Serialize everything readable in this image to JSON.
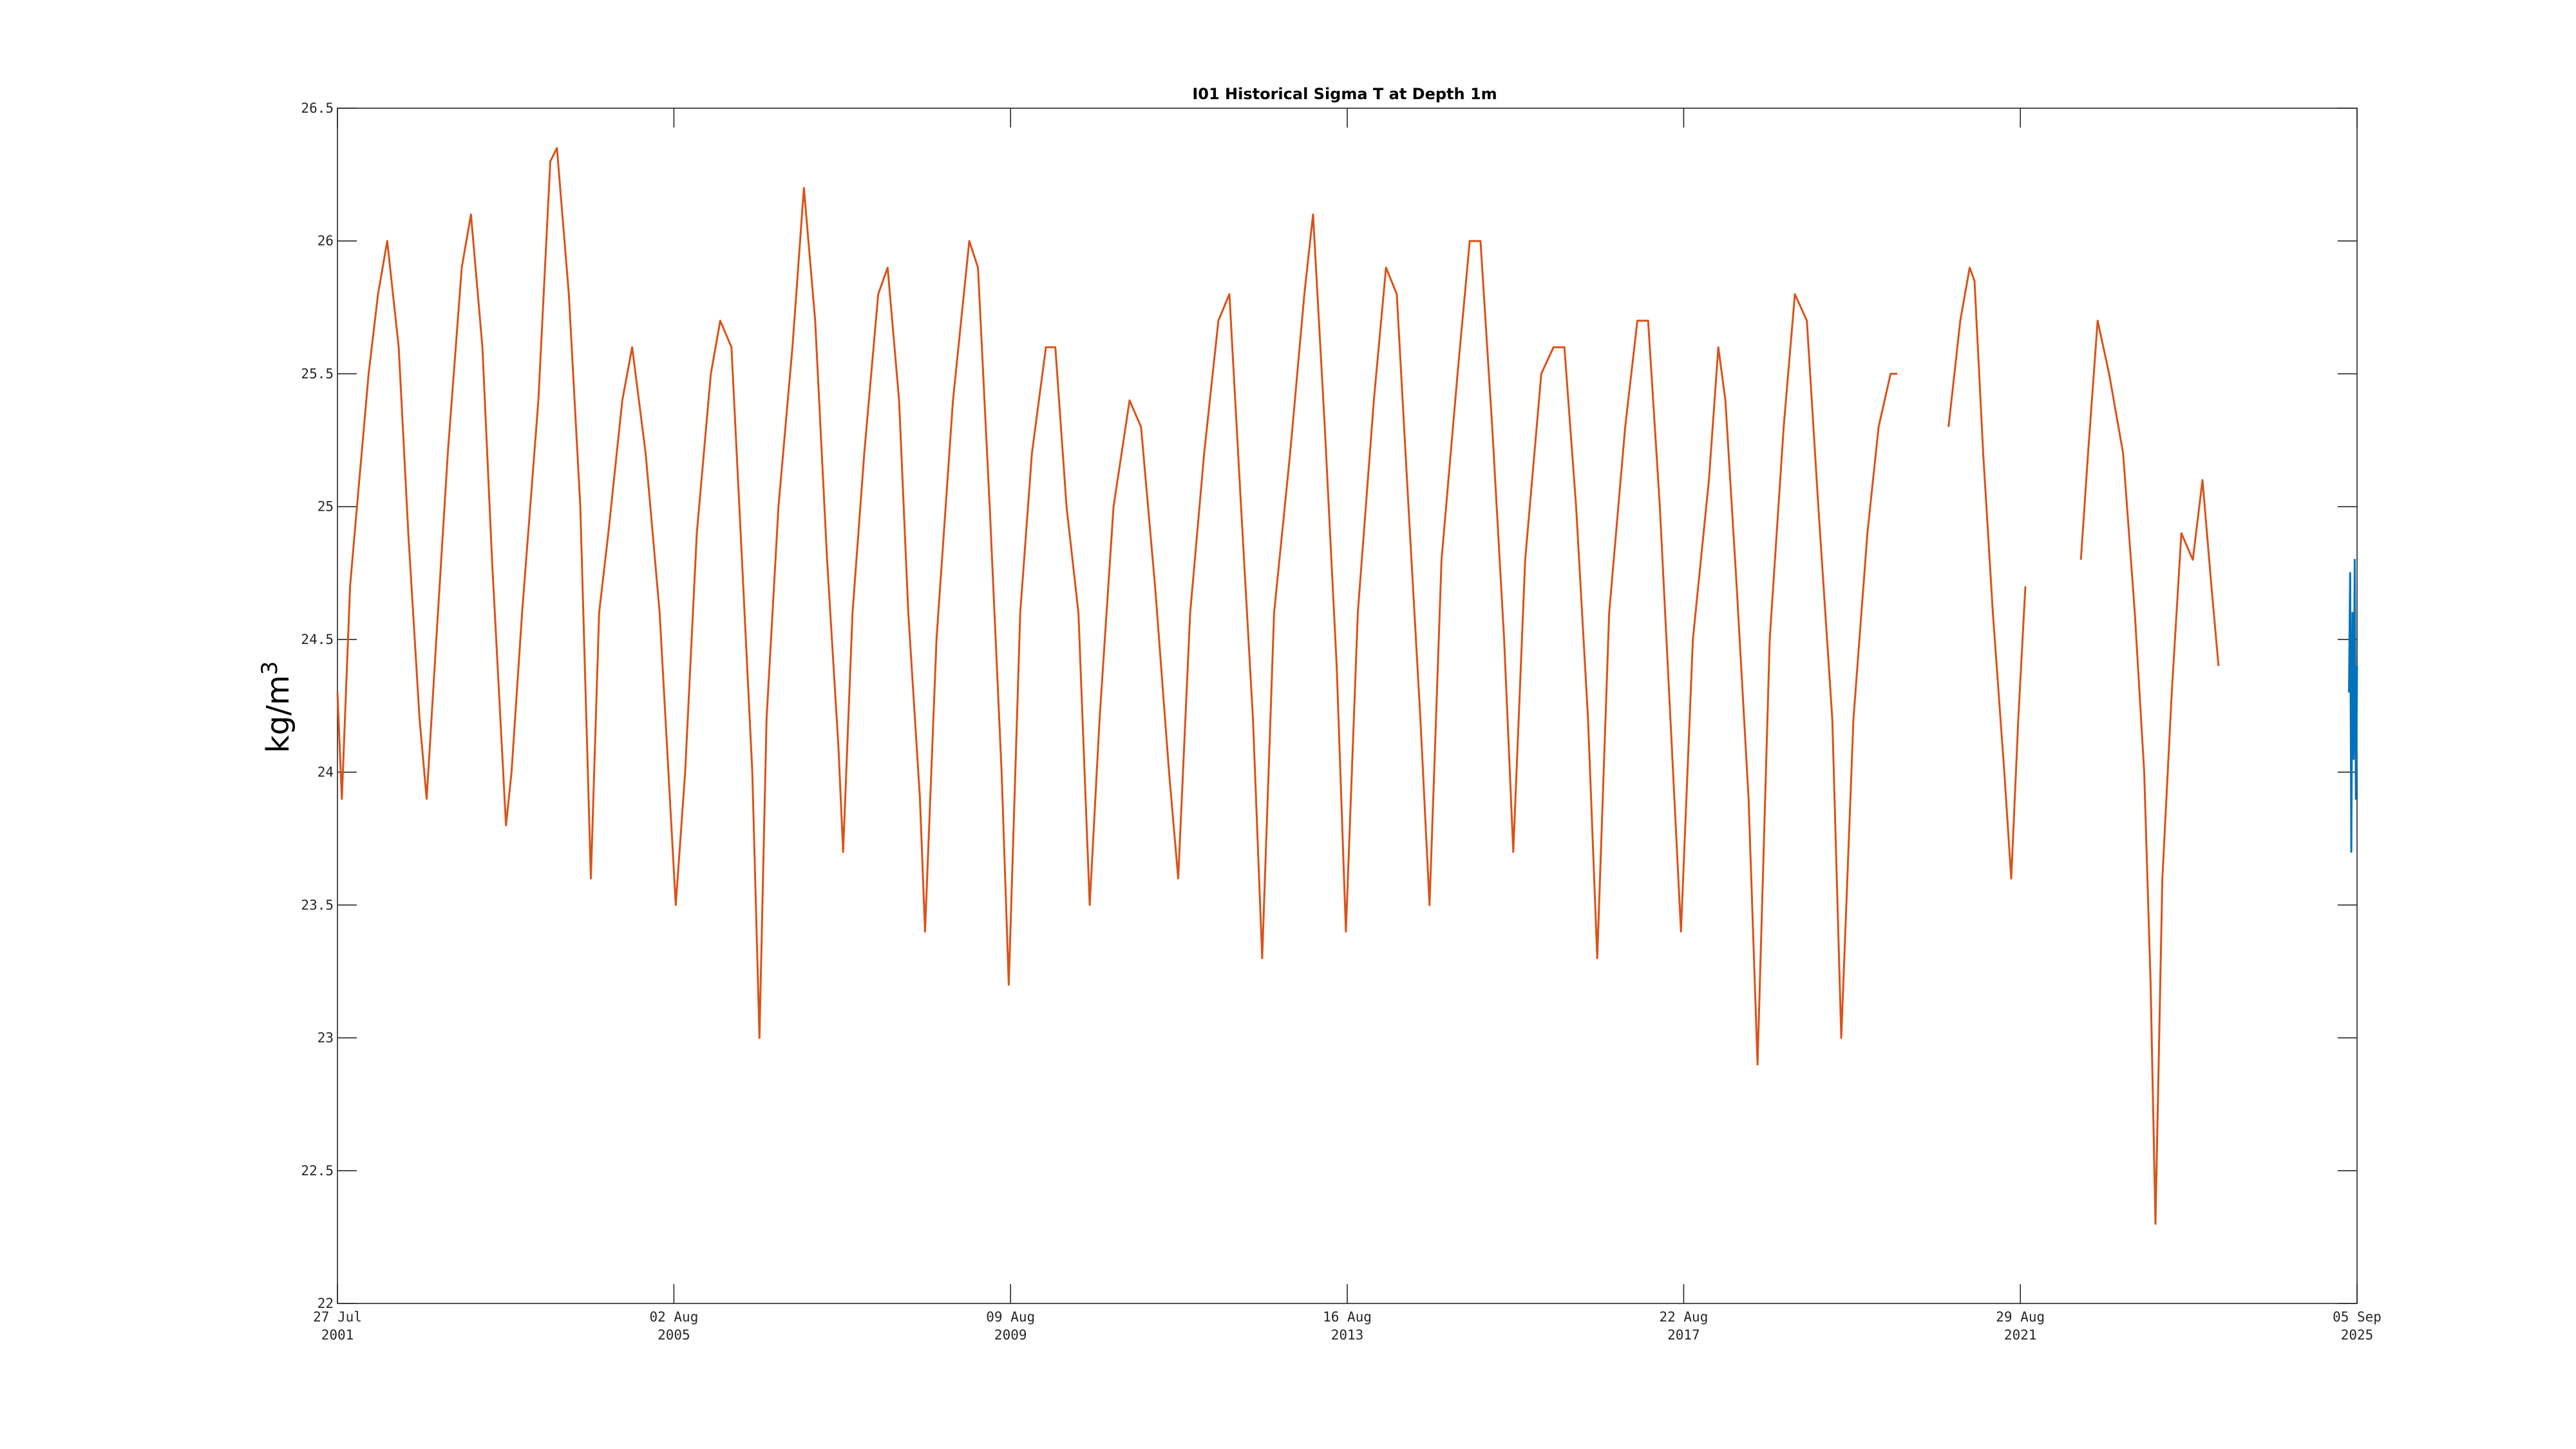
{
  "chart_data": {
    "type": "line",
    "title": "I01 Historical Sigma T at Depth 1m",
    "xlabel": "",
    "ylabel": "kg/m",
    "ylabel_superscript": "3",
    "xlim": [
      "2001-07-27",
      "2025-09-05"
    ],
    "ylim": [
      22,
      26.5
    ],
    "yticks": [
      22,
      22.5,
      23,
      23.5,
      24,
      24.5,
      25,
      25.5,
      26,
      26.5
    ],
    "yticklabels": [
      "22",
      "22.5",
      "23",
      "23.5",
      "24",
      "24.5",
      "25",
      "25.5",
      "26",
      "26.5"
    ],
    "xticks": [
      {
        "date": "2001-07-27",
        "line1": "27 Jul",
        "line2": "2001"
      },
      {
        "date": "2005-08-02",
        "line1": "02 Aug",
        "line2": "2005"
      },
      {
        "date": "2009-08-09",
        "line1": "09 Aug",
        "line2": "2009"
      },
      {
        "date": "2013-08-16",
        "line1": "16 Aug",
        "line2": "2013"
      },
      {
        "date": "2017-08-22",
        "line1": "22 Aug",
        "line2": "2017"
      },
      {
        "date": "2021-08-29",
        "line1": "29 Aug",
        "line2": "2021"
      },
      {
        "date": "2025-09-05",
        "line1": "05 Sep",
        "line2": "2025"
      }
    ],
    "grid": false,
    "legend": "none",
    "series": [
      {
        "color": "#D95319",
        "segments": [
          [
            [
              "2001-07-27",
              24.3
            ],
            [
              "2001-08-15",
              23.9
            ],
            [
              "2001-09-20",
              24.7
            ],
            [
              "2001-10-20",
              25.0
            ],
            [
              "2001-12-10",
              25.5
            ],
            [
              "2002-01-20",
              25.8
            ],
            [
              "2002-03-01",
              26.0
            ],
            [
              "2002-04-20",
              25.6
            ],
            [
              "2002-06-01",
              24.9
            ],
            [
              "2002-07-20",
              24.2
            ],
            [
              "2002-08-20",
              23.9
            ],
            [
              "2002-10-01",
              24.5
            ],
            [
              "2002-11-20",
              25.2
            ],
            [
              "2003-01-20",
              25.9
            ],
            [
              "2003-03-01",
              26.1
            ],
            [
              "2003-04-20",
              25.6
            ],
            [
              "2003-06-01",
              24.8
            ],
            [
              "2003-08-01",
              23.8
            ],
            [
              "2003-08-25",
              24.0
            ],
            [
              "2003-10-10",
              24.6
            ],
            [
              "2003-12-20",
              25.4
            ],
            [
              "2004-02-10",
              26.3
            ],
            [
              "2004-03-10",
              26.35
            ],
            [
              "2004-05-01",
              25.8
            ],
            [
              "2004-06-20",
              25.0
            ],
            [
              "2004-08-05",
              23.6
            ],
            [
              "2004-09-10",
              24.6
            ],
            [
              "2004-10-20",
              24.9
            ],
            [
              "2004-12-20",
              25.4
            ],
            [
              "2005-02-01",
              25.6
            ],
            [
              "2005-04-01",
              25.2
            ],
            [
              "2005-06-01",
              24.6
            ],
            [
              "2005-08-10",
              23.5
            ],
            [
              "2005-09-20",
              24.0
            ],
            [
              "2005-11-10",
              24.9
            ],
            [
              "2006-01-10",
              25.5
            ],
            [
              "2006-02-20",
              25.7
            ],
            [
              "2006-04-10",
              25.6
            ],
            [
              "2006-05-20",
              24.9
            ],
            [
              "2006-07-10",
              24.0
            ],
            [
              "2006-08-10",
              23.0
            ],
            [
              "2006-09-10",
              24.2
            ],
            [
              "2006-11-01",
              25.0
            ],
            [
              "2007-01-01",
              25.6
            ],
            [
              "2007-02-20",
              26.2
            ],
            [
              "2007-04-10",
              25.7
            ],
            [
              "2007-06-01",
              24.8
            ],
            [
              "2007-07-20",
              24.1
            ],
            [
              "2007-08-10",
              23.7
            ],
            [
              "2007-09-20",
              24.6
            ],
            [
              "2007-11-10",
              25.2
            ],
            [
              "2008-01-10",
              25.8
            ],
            [
              "2008-02-20",
              25.9
            ],
            [
              "2008-04-10",
              25.4
            ],
            [
              "2008-05-20",
              24.6
            ],
            [
              "2008-07-10",
              23.9
            ],
            [
              "2008-08-01",
              23.4
            ],
            [
              "2008-09-20",
              24.5
            ],
            [
              "2008-12-01",
              25.4
            ],
            [
              "2009-02-10",
              26.0
            ],
            [
              "2009-03-20",
              25.9
            ],
            [
              "2009-05-10",
              25.0
            ],
            [
              "2009-07-01",
              24.0
            ],
            [
              "2009-08-01",
              23.2
            ],
            [
              "2009-09-20",
              24.6
            ],
            [
              "2009-11-10",
              25.2
            ],
            [
              "2010-01-10",
              25.6
            ],
            [
              "2010-02-20",
              25.6
            ],
            [
              "2010-04-10",
              25.0
            ],
            [
              "2010-06-01",
              24.6
            ],
            [
              "2010-07-20",
              23.5
            ],
            [
              "2010-09-01",
              24.2
            ],
            [
              "2010-11-01",
              25.0
            ],
            [
              "2011-01-10",
              25.4
            ],
            [
              "2011-03-01",
              25.3
            ],
            [
              "2011-05-01",
              24.7
            ],
            [
              "2011-07-01",
              24.0
            ],
            [
              "2011-08-10",
              23.6
            ],
            [
              "2011-10-01",
              24.6
            ],
            [
              "2011-12-01",
              25.2
            ],
            [
              "2012-02-01",
              25.7
            ],
            [
              "2012-03-20",
              25.8
            ],
            [
              "2012-05-10",
              25.0
            ],
            [
              "2012-07-01",
              24.2
            ],
            [
              "2012-08-10",
              23.3
            ],
            [
              "2012-10-01",
              24.6
            ],
            [
              "2012-12-10",
              25.2
            ],
            [
              "2013-02-10",
              25.8
            ],
            [
              "2013-03-20",
              26.1
            ],
            [
              "2013-05-10",
              25.3
            ],
            [
              "2013-07-01",
              24.4
            ],
            [
              "2013-08-10",
              23.4
            ],
            [
              "2013-10-01",
              24.6
            ],
            [
              "2013-12-10",
              25.4
            ],
            [
              "2014-02-01",
              25.9
            ],
            [
              "2014-03-20",
              25.8
            ],
            [
              "2014-05-10",
              25.0
            ],
            [
              "2014-07-01",
              24.2
            ],
            [
              "2014-08-10",
              23.5
            ],
            [
              "2014-10-01",
              24.8
            ],
            [
              "2014-12-10",
              25.5
            ],
            [
              "2015-02-01",
              26.0
            ],
            [
              "2015-03-20",
              26.0
            ],
            [
              "2015-05-10",
              25.3
            ],
            [
              "2015-07-01",
              24.5
            ],
            [
              "2015-08-10",
              23.7
            ],
            [
              "2015-10-01",
              24.8
            ],
            [
              "2015-12-10",
              25.5
            ],
            [
              "2016-02-01",
              25.6
            ],
            [
              "2016-03-20",
              25.6
            ],
            [
              "2016-05-10",
              25.0
            ],
            [
              "2016-07-01",
              24.2
            ],
            [
              "2016-08-10",
              23.3
            ],
            [
              "2016-10-01",
              24.6
            ],
            [
              "2016-12-10",
              25.3
            ],
            [
              "2017-02-01",
              25.7
            ],
            [
              "2017-03-20",
              25.7
            ],
            [
              "2017-05-10",
              25.0
            ],
            [
              "2017-07-01",
              24.1
            ],
            [
              "2017-08-10",
              23.4
            ],
            [
              "2017-10-01",
              24.5
            ],
            [
              "2017-12-10",
              25.1
            ],
            [
              "2018-01-20",
              25.6
            ],
            [
              "2018-02-20",
              25.4
            ],
            [
              "2018-04-10",
              24.7
            ],
            [
              "2018-06-01",
              23.9
            ],
            [
              "2018-07-10",
              22.9
            ],
            [
              "2018-09-01",
              24.5
            ],
            [
              "2018-11-01",
              25.3
            ],
            [
              "2018-12-20",
              25.8
            ],
            [
              "2019-02-10",
              25.7
            ],
            [
              "2019-04-01",
              25.0
            ],
            [
              "2019-06-01",
              24.2
            ],
            [
              "2019-07-10",
              23.0
            ],
            [
              "2019-09-01",
              24.2
            ],
            [
              "2019-11-01",
              24.9
            ],
            [
              "2019-12-20",
              25.3
            ],
            [
              "2020-02-10",
              25.5
            ],
            [
              "2020-03-10",
              25.5
            ]
          ],
          [
            [
              "2020-10-20",
              25.3
            ],
            [
              "2020-12-10",
              25.7
            ],
            [
              "2021-01-20",
              25.9
            ],
            [
              "2021-02-10",
              25.85
            ],
            [
              "2021-03-20",
              25.2
            ],
            [
              "2021-05-01",
              24.6
            ],
            [
              "2021-06-20",
              24.0
            ],
            [
              "2021-07-20",
              23.6
            ],
            [
              "2021-08-20",
              24.2
            ],
            [
              "2021-09-20",
              24.7
            ]
          ],
          [
            [
              "2022-05-20",
              24.8
            ],
            [
              "2022-06-20",
              25.2
            ],
            [
              "2022-08-01",
              25.7
            ],
            [
              "2022-09-20",
              25.5
            ],
            [
              "2022-11-20",
              25.2
            ],
            [
              "2023-01-10",
              24.6
            ],
            [
              "2023-02-20",
              24.0
            ],
            [
              "2023-03-20",
              23.2
            ],
            [
              "2023-04-10",
              22.3
            ],
            [
              "2023-05-10",
              23.6
            ],
            [
              "2023-06-20",
              24.3
            ],
            [
              "2023-08-01",
              24.9
            ],
            [
              "2023-09-20",
              24.8
            ],
            [
              "2023-11-01",
              25.1
            ],
            [
              "2023-12-10",
              24.7
            ],
            [
              "2024-01-10",
              24.4
            ]
          ]
        ]
      },
      {
        "color": "#0072BD",
        "segments": [
          [
            [
              "2025-08-01",
              24.3
            ],
            [
              "2025-08-06",
              24.75
            ],
            [
              "2025-08-11",
              23.7
            ],
            [
              "2025-08-16",
              24.6
            ],
            [
              "2025-08-21",
              24.05
            ],
            [
              "2025-08-26",
              24.8
            ],
            [
              "2025-08-31",
              23.9
            ],
            [
              "2025-09-05",
              24.4
            ]
          ]
        ]
      }
    ]
  }
}
